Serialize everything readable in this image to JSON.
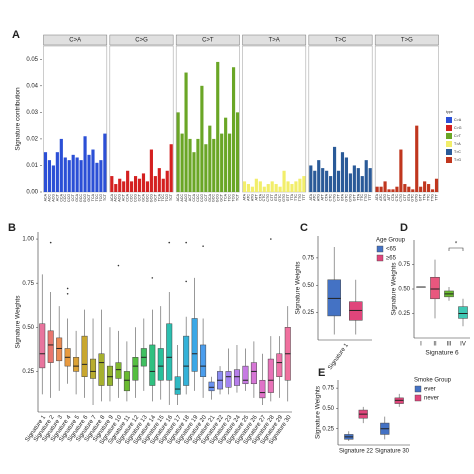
{
  "chart_data": [
    {
      "type": "bar",
      "panel": "A",
      "ylabel": "Signature contribution",
      "legend_title": "type",
      "ylim": [
        0,
        0.055
      ],
      "yticks": [
        {
          "value": 0,
          "label": "0.00"
        },
        0.01,
        0.02,
        0.03,
        0.04,
        0.05
      ],
      "facets": [
        {
          "name": "C>A",
          "color": "#2b4fd6",
          "categories": [
            "ACA",
            "ACC",
            "ACG",
            "ACT",
            "CCA",
            "CCC",
            "CCG",
            "CCT",
            "GCA",
            "GCC",
            "GCG",
            "GCT",
            "TCA",
            "TCC",
            "TCG",
            "TCT"
          ],
          "values": [
            0.015,
            0.012,
            0.01,
            0.015,
            0.02,
            0.013,
            0.012,
            0.014,
            0.013,
            0.012,
            0.021,
            0.014,
            0.016,
            0.011,
            0.012,
            0.022
          ]
        },
        {
          "name": "C>G",
          "color": "#d42020",
          "categories": [
            "ACA",
            "ACC",
            "ACG",
            "ACT",
            "CCA",
            "CCC",
            "CCG",
            "CCT",
            "GCA",
            "GCC",
            "GCG",
            "GCT",
            "TCA",
            "TCC",
            "TCG",
            "TCT"
          ],
          "values": [
            0.006,
            0.003,
            0.005,
            0.004,
            0.008,
            0.004,
            0.006,
            0.005,
            0.007,
            0.004,
            0.016,
            0.006,
            0.009,
            0.005,
            0.008,
            0.018
          ]
        },
        {
          "name": "C>T",
          "color": "#6aa626",
          "categories": [
            "ACA",
            "ACC",
            "ACG",
            "ACT",
            "CCA",
            "CCC",
            "CCG",
            "CCT",
            "GCA",
            "GCC",
            "GCG",
            "GCT",
            "TCA",
            "TCC",
            "TCG",
            "TCT"
          ],
          "values": [
            0.03,
            0.022,
            0.045,
            0.02,
            0.015,
            0.02,
            0.04,
            0.018,
            0.025,
            0.02,
            0.049,
            0.022,
            0.028,
            0.022,
            0.047,
            0.03
          ]
        },
        {
          "name": "T>A",
          "color": "#f2ee6a",
          "categories": [
            "ATA",
            "ATC",
            "ATG",
            "ATT",
            "CTA",
            "CTC",
            "CTG",
            "CTT",
            "GTA",
            "GTC",
            "GTG",
            "GTT",
            "TTA",
            "TTC",
            "TTG",
            "TTT"
          ],
          "values": [
            0.004,
            0.003,
            0.002,
            0.005,
            0.004,
            0.002,
            0.003,
            0.004,
            0.003,
            0.002,
            0.008,
            0.004,
            0.003,
            0.004,
            0.005,
            0.006
          ]
        },
        {
          "name": "T>C",
          "color": "#2a5a98",
          "categories": [
            "ATA",
            "ATC",
            "ATG",
            "ATT",
            "CTA",
            "CTC",
            "CTG",
            "CTT",
            "GTA",
            "GTC",
            "GTG",
            "GTT",
            "TTA",
            "TTC",
            "TTG",
            "TTT"
          ],
          "values": [
            0.01,
            0.008,
            0.012,
            0.009,
            0.008,
            0.006,
            0.017,
            0.008,
            0.015,
            0.013,
            0.007,
            0.01,
            0.009,
            0.006,
            0.012,
            0.009
          ]
        },
        {
          "name": "T>G",
          "color": "#c0361e",
          "categories": [
            "ATA",
            "ATC",
            "ATG",
            "ATT",
            "CTA",
            "CTC",
            "CTG",
            "CTT",
            "GTA",
            "GTC",
            "GTG",
            "GTT",
            "TTA",
            "TTC",
            "TTG",
            "TTT"
          ],
          "values": [
            0.002,
            0.002,
            0.004,
            0.001,
            0.001,
            0.002,
            0.016,
            0.003,
            0.002,
            0.001,
            0.025,
            0.002,
            0.004,
            0.003,
            0.001,
            0.005
          ]
        }
      ]
    },
    {
      "type": "box",
      "panel": "B",
      "ylabel": "Signature Weights",
      "ylim": [
        0.02,
        1.04
      ],
      "yticks": [
        0.25,
        {
          "value": 0.5,
          "label": "0.50"
        },
        0.75,
        {
          "value": 1,
          "label": "1.00"
        }
      ],
      "categories": [
        "Signature 1",
        "Signature 2",
        "Signature 3",
        "Signature 4",
        "Signature 5",
        "Signature 6",
        "Signature 7",
        "Signature 8",
        "Signature 9",
        "Signature 10",
        "Signature 11",
        "Signature 12",
        "Signature 13",
        "Signature 14",
        "Signature 15",
        "Signature 16",
        "Signature 17",
        "Signature 18",
        "Signature 19",
        "Signature 20",
        "Signature 21",
        "Signature 22",
        "Signature 23",
        "Signature 24",
        "Signature 25",
        "Signature 26",
        "Signature 27",
        "Signature 28",
        "Signature 29",
        "Signature 30"
      ],
      "boxes": [
        {
          "color": "#e8759e",
          "min": 0.12,
          "q1": 0.27,
          "median": 0.35,
          "q3": 0.52,
          "max": 0.8
        },
        {
          "color": "#e8766e",
          "min": 0.1,
          "q1": 0.3,
          "median": 0.4,
          "q3": 0.48,
          "max": 0.7,
          "outliers": [
            0.98
          ]
        },
        {
          "color": "#ec8c55",
          "min": 0.14,
          "q1": 0.31,
          "median": 0.38,
          "q3": 0.44,
          "max": 0.62
        },
        {
          "color": "#e89a40",
          "min": 0.18,
          "q1": 0.28,
          "median": 0.33,
          "q3": 0.38,
          "max": 0.55,
          "outliers": [
            0.72,
            0.69
          ]
        },
        {
          "color": "#dca236",
          "min": 0.12,
          "q1": 0.25,
          "median": 0.28,
          "q3": 0.33,
          "max": 0.48
        },
        {
          "color": "#c9a72e",
          "min": 0.1,
          "q1": 0.22,
          "median": 0.29,
          "q3": 0.45,
          "max": 0.6
        },
        {
          "color": "#b8ac2e",
          "min": 0.06,
          "q1": 0.21,
          "median": 0.25,
          "q3": 0.32,
          "max": 0.55
        },
        {
          "color": "#a6b02e",
          "min": 0.08,
          "q1": 0.17,
          "median": 0.3,
          "q3": 0.35,
          "max": 0.6
        },
        {
          "color": "#94b42e",
          "min": 0.08,
          "q1": 0.17,
          "median": 0.22,
          "q3": 0.28,
          "max": 0.5
        },
        {
          "color": "#80b82e",
          "min": 0.1,
          "q1": 0.21,
          "median": 0.26,
          "q3": 0.3,
          "max": 0.48,
          "outliers": [
            0.85
          ]
        },
        {
          "color": "#6abb30",
          "min": 0.08,
          "q1": 0.14,
          "median": 0.2,
          "q3": 0.25,
          "max": 0.42
        },
        {
          "color": "#55be40",
          "min": 0.1,
          "q1": 0.2,
          "median": 0.28,
          "q3": 0.33,
          "max": 0.5
        },
        {
          "color": "#40c060",
          "min": 0.14,
          "q1": 0.28,
          "median": 0.33,
          "q3": 0.38,
          "max": 0.55
        },
        {
          "color": "#30c080",
          "min": 0.08,
          "q1": 0.17,
          "median": 0.25,
          "q3": 0.4,
          "max": 0.6,
          "outliers": [
            0.78
          ]
        },
        {
          "color": "#28c09a",
          "min": 0.09,
          "q1": 0.2,
          "median": 0.28,
          "q3": 0.38,
          "max": 0.62
        },
        {
          "color": "#2bbfb0",
          "min": 0.06,
          "q1": 0.2,
          "median": 0.33,
          "q3": 0.52,
          "max": 0.7,
          "outliers": [
            0.98
          ]
        },
        {
          "color": "#2fbac4",
          "min": 0.06,
          "q1": 0.12,
          "median": 0.15,
          "q3": 0.22,
          "max": 0.4
        },
        {
          "color": "#34b2d8",
          "min": 0.12,
          "q1": 0.17,
          "median": 0.28,
          "q3": 0.45,
          "max": 0.56,
          "outliers": [
            0.98,
            0.76
          ]
        },
        {
          "color": "#3ba8e6",
          "min": 0.14,
          "q1": 0.25,
          "median": 0.35,
          "q3": 0.55,
          "max": 0.78
        },
        {
          "color": "#4a9ded",
          "min": 0.1,
          "q1": 0.22,
          "median": 0.28,
          "q3": 0.4,
          "max": 0.55,
          "outliers": [
            0.96
          ]
        },
        {
          "color": "#6a93f0",
          "min": 0.09,
          "q1": 0.14,
          "median": 0.16,
          "q3": 0.19,
          "max": 0.22
        },
        {
          "color": "#8a8cf2",
          "min": 0.12,
          "q1": 0.15,
          "median": 0.2,
          "q3": 0.25,
          "max": 0.28
        },
        {
          "color": "#a284f0",
          "min": 0.12,
          "q1": 0.16,
          "median": 0.22,
          "q3": 0.25,
          "max": 0.38
        },
        {
          "color": "#b67eea",
          "min": 0.13,
          "q1": 0.17,
          "median": 0.22,
          "q3": 0.26,
          "max": 0.4
        },
        {
          "color": "#c67ae2",
          "min": 0.14,
          "q1": 0.18,
          "median": 0.2,
          "q3": 0.28,
          "max": 0.38
        },
        {
          "color": "#d676d6",
          "min": 0.1,
          "q1": 0.18,
          "median": 0.25,
          "q3": 0.3,
          "max": 0.42
        },
        {
          "color": "#e073c8",
          "min": 0.06,
          "q1": 0.1,
          "median": 0.13,
          "q3": 0.2,
          "max": 0.35
        },
        {
          "color": "#e872b8",
          "min": 0.08,
          "q1": 0.13,
          "median": 0.2,
          "q3": 0.32,
          "max": 0.45,
          "outliers": [
            1.0
          ]
        },
        {
          "color": "#ee72a8",
          "min": 0.1,
          "q1": 0.22,
          "median": 0.3,
          "q3": 0.35,
          "max": 0.45
        },
        {
          "color": "#f0709e",
          "min": 0.08,
          "q1": 0.2,
          "median": 0.35,
          "q3": 0.5,
          "max": 0.62
        }
      ]
    },
    {
      "type": "box",
      "panel": "C",
      "ylabel": "Signature Weights",
      "legend_title": "Age Group",
      "ylim": [
        0,
        0.95
      ],
      "yticks": [
        0.25,
        {
          "value": 0.5,
          "label": "0.50"
        },
        0.75
      ],
      "categories": [
        "Signature 1"
      ],
      "series": [
        {
          "name": "<65",
          "color": "#4472c4",
          "boxes": [
            {
              "min": 0.05,
              "q1": 0.22,
              "median": 0.38,
              "q3": 0.55,
              "max": 0.85
            }
          ]
        },
        {
          "name": "≥65",
          "color": "#e0457b",
          "boxes": [
            {
              "min": 0.05,
              "q1": 0.18,
              "median": 0.27,
              "q3": 0.35,
              "max": 0.55
            }
          ]
        }
      ]
    },
    {
      "type": "box",
      "panel": "D",
      "ylabel": "Signature Weights",
      "xlabel": "Signature 6",
      "annotation": "*",
      "ylim": [
        0,
        1
      ],
      "yticks": [
        0.25,
        {
          "value": 0.5,
          "label": "0.50"
        },
        0.75
      ],
      "categories": [
        "I",
        "II",
        "III",
        "IV"
      ],
      "boxes": [
        {
          "color": "#e05570",
          "min": 0.52,
          "q1": 0.52,
          "median": 0.52,
          "q3": 0.52,
          "max": 0.52
        },
        {
          "color": "#e8577e",
          "min": 0.2,
          "q1": 0.4,
          "median": 0.5,
          "q3": 0.62,
          "max": 0.8
        },
        {
          "color": "#6abb30",
          "min": 0.38,
          "q1": 0.42,
          "median": 0.45,
          "q3": 0.48,
          "max": 0.52
        },
        {
          "color": "#3fc8b4",
          "min": 0.12,
          "q1": 0.2,
          "median": 0.25,
          "q3": 0.32,
          "max": 0.4
        }
      ]
    },
    {
      "type": "box",
      "panel": "E",
      "ylabel": "Signature Weights",
      "legend_title": "Smoke Group",
      "ylim": [
        0.05,
        0.85
      ],
      "yticks": [
        0.25,
        {
          "value": 0.5,
          "label": "0.50"
        },
        0.75
      ],
      "categories": [
        "Signature 22",
        "Signature 30"
      ],
      "series": [
        {
          "name": "ever",
          "color": "#4472c4",
          "boxes": [
            {
              "min": 0.1,
              "q1": 0.12,
              "median": 0.15,
              "q3": 0.18,
              "max": 0.22
            },
            {
              "min": 0.12,
              "q1": 0.18,
              "median": 0.25,
              "q3": 0.32,
              "max": 0.4
            }
          ]
        },
        {
          "name": "never",
          "color": "#e0457b",
          "boxes": [
            {
              "min": 0.32,
              "q1": 0.38,
              "median": 0.43,
              "q3": 0.48,
              "max": 0.52
            },
            {
              "min": 0.52,
              "q1": 0.56,
              "median": 0.6,
              "q3": 0.63,
              "max": 0.68
            }
          ]
        }
      ]
    }
  ]
}
